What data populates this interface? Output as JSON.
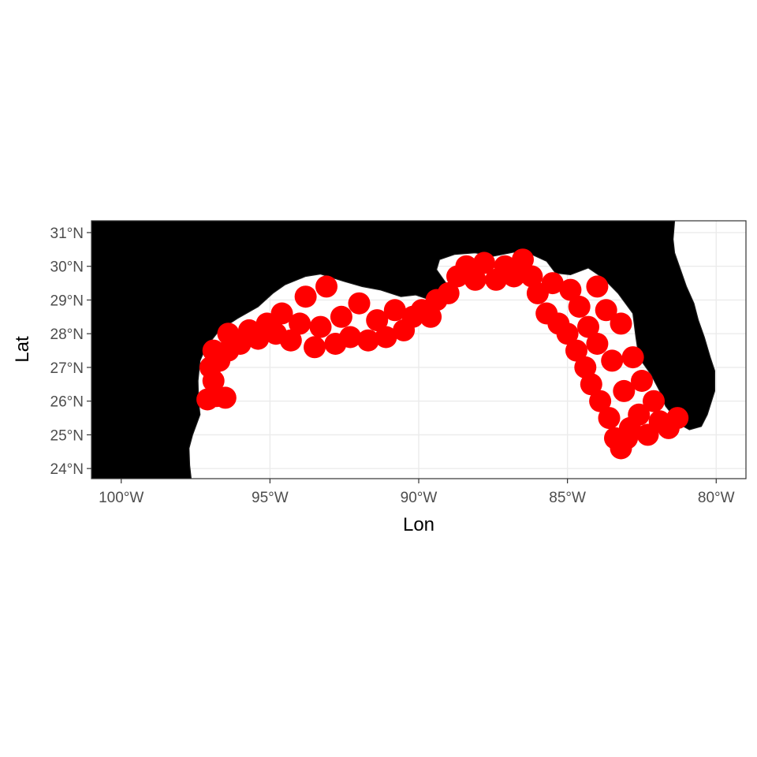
{
  "chart_data": {
    "type": "scatter",
    "map": "Gulf of Mexico",
    "xlabel": "Lon",
    "ylabel": "Lat",
    "xlim": [
      -101.0,
      -79.0
    ],
    "ylim": [
      23.7,
      31.35
    ],
    "x_ticks": [
      {
        "value": -100,
        "label": "100°W"
      },
      {
        "value": -95,
        "label": "95°W"
      },
      {
        "value": -90,
        "label": "90°W"
      },
      {
        "value": -85,
        "label": "85°W"
      },
      {
        "value": -80,
        "label": "80°W"
      }
    ],
    "y_ticks": [
      {
        "value": 24,
        "label": "24°N"
      },
      {
        "value": 25,
        "label": "25°N"
      },
      {
        "value": 26,
        "label": "26°N"
      },
      {
        "value": 27,
        "label": "27°N"
      },
      {
        "value": 28,
        "label": "28°N"
      },
      {
        "value": 29,
        "label": "29°N"
      },
      {
        "value": 30,
        "label": "30°N"
      },
      {
        "value": 31,
        "label": "31°N"
      }
    ],
    "grid": true,
    "land_color": "#000000",
    "water_color": "#ffffff",
    "grid_color": "#ebebeb",
    "point_color": "#ff0000",
    "coastline": [
      [
        -97.65,
        23.7
      ],
      [
        -97.7,
        24.1
      ],
      [
        -97.72,
        24.6
      ],
      [
        -97.6,
        25.0
      ],
      [
        -97.35,
        25.6
      ],
      [
        -97.4,
        26.0
      ],
      [
        -97.42,
        26.6
      ],
      [
        -97.35,
        27.2
      ],
      [
        -97.15,
        27.6
      ],
      [
        -96.7,
        28.1
      ],
      [
        -96.1,
        28.45
      ],
      [
        -95.4,
        28.8
      ],
      [
        -94.9,
        29.2
      ],
      [
        -94.5,
        29.45
      ],
      [
        -93.8,
        29.7
      ],
      [
        -93.3,
        29.77
      ],
      [
        -92.5,
        29.55
      ],
      [
        -91.9,
        29.4
      ],
      [
        -91.3,
        29.3
      ],
      [
        -90.6,
        29.1
      ],
      [
        -90.1,
        29.15
      ],
      [
        -89.6,
        29.0
      ],
      [
        -89.2,
        29.1
      ],
      [
        -89.0,
        29.4
      ],
      [
        -89.4,
        29.9
      ],
      [
        -89.3,
        30.2
      ],
      [
        -88.8,
        30.35
      ],
      [
        -88.1,
        30.4
      ],
      [
        -87.5,
        30.3
      ],
      [
        -86.8,
        30.42
      ],
      [
        -86.2,
        30.35
      ],
      [
        -85.7,
        30.15
      ],
      [
        -85.4,
        29.8
      ],
      [
        -84.9,
        29.75
      ],
      [
        -84.3,
        29.95
      ],
      [
        -83.8,
        29.65
      ],
      [
        -83.3,
        29.2
      ],
      [
        -82.8,
        28.6
      ],
      [
        -82.7,
        27.9
      ],
      [
        -82.6,
        27.3
      ],
      [
        -82.2,
        26.8
      ],
      [
        -81.9,
        26.3
      ],
      [
        -81.7,
        25.85
      ],
      [
        -81.2,
        25.3
      ],
      [
        -80.9,
        25.15
      ],
      [
        -80.5,
        25.25
      ],
      [
        -80.3,
        25.6
      ],
      [
        -80.05,
        26.3
      ],
      [
        -80.05,
        26.9
      ],
      [
        -80.2,
        27.3
      ],
      [
        -80.4,
        27.9
      ],
      [
        -80.6,
        28.4
      ],
      [
        -80.75,
        28.9
      ],
      [
        -81.0,
        29.4
      ],
      [
        -81.2,
        29.9
      ],
      [
        -81.4,
        30.4
      ],
      [
        -81.45,
        30.8
      ],
      [
        -81.4,
        31.35
      ]
    ],
    "series": [
      {
        "values": [
          [
            -97.1,
            26.05
          ],
          [
            -96.8,
            26.15
          ],
          [
            -96.5,
            26.1
          ],
          [
            -96.9,
            26.6
          ],
          [
            -97.0,
            27.0
          ],
          [
            -96.7,
            27.2
          ],
          [
            -96.4,
            27.5
          ],
          [
            -96.9,
            27.5
          ],
          [
            -96.0,
            27.7
          ],
          [
            -96.4,
            28.0
          ],
          [
            -95.7,
            28.1
          ],
          [
            -95.4,
            27.85
          ],
          [
            -95.1,
            28.3
          ],
          [
            -94.8,
            28.0
          ],
          [
            -94.6,
            28.6
          ],
          [
            -94.3,
            27.8
          ],
          [
            -94.0,
            28.3
          ],
          [
            -93.8,
            29.1
          ],
          [
            -93.5,
            27.6
          ],
          [
            -93.3,
            28.2
          ],
          [
            -93.1,
            29.4
          ],
          [
            -92.8,
            27.7
          ],
          [
            -92.6,
            28.5
          ],
          [
            -92.3,
            27.9
          ],
          [
            -92.0,
            28.9
          ],
          [
            -91.7,
            27.8
          ],
          [
            -91.4,
            28.4
          ],
          [
            -91.1,
            27.9
          ],
          [
            -90.8,
            28.7
          ],
          [
            -90.5,
            28.1
          ],
          [
            -90.2,
            28.5
          ],
          [
            -89.9,
            28.7
          ],
          [
            -89.6,
            28.5
          ],
          [
            -89.4,
            29.0
          ],
          [
            -89.0,
            29.2
          ],
          [
            -88.7,
            29.7
          ],
          [
            -88.4,
            30.0
          ],
          [
            -88.1,
            29.6
          ],
          [
            -87.8,
            30.1
          ],
          [
            -87.4,
            29.6
          ],
          [
            -87.1,
            30.0
          ],
          [
            -86.8,
            29.7
          ],
          [
            -86.5,
            30.2
          ],
          [
            -86.2,
            29.7
          ],
          [
            -86.0,
            29.2
          ],
          [
            -85.7,
            28.6
          ],
          [
            -85.5,
            29.5
          ],
          [
            -85.3,
            28.3
          ],
          [
            -85.0,
            28.0
          ],
          [
            -84.9,
            29.3
          ],
          [
            -84.7,
            27.5
          ],
          [
            -84.6,
            28.8
          ],
          [
            -84.4,
            27.0
          ],
          [
            -84.3,
            28.2
          ],
          [
            -84.2,
            26.5
          ],
          [
            -84.0,
            29.4
          ],
          [
            -84.0,
            27.7
          ],
          [
            -83.9,
            26.0
          ],
          [
            -83.7,
            28.7
          ],
          [
            -83.6,
            25.5
          ],
          [
            -83.5,
            27.2
          ],
          [
            -83.4,
            24.9
          ],
          [
            -83.2,
            28.3
          ],
          [
            -83.1,
            26.3
          ],
          [
            -83.0,
            24.9
          ],
          [
            -82.8,
            27.3
          ],
          [
            -82.6,
            25.6
          ],
          [
            -82.5,
            26.6
          ],
          [
            -82.3,
            25.0
          ],
          [
            -82.1,
            26.0
          ],
          [
            -81.9,
            25.4
          ],
          [
            -81.6,
            25.2
          ],
          [
            -81.3,
            25.5
          ],
          [
            -83.2,
            24.6
          ],
          [
            -82.9,
            25.2
          ]
        ]
      }
    ]
  }
}
